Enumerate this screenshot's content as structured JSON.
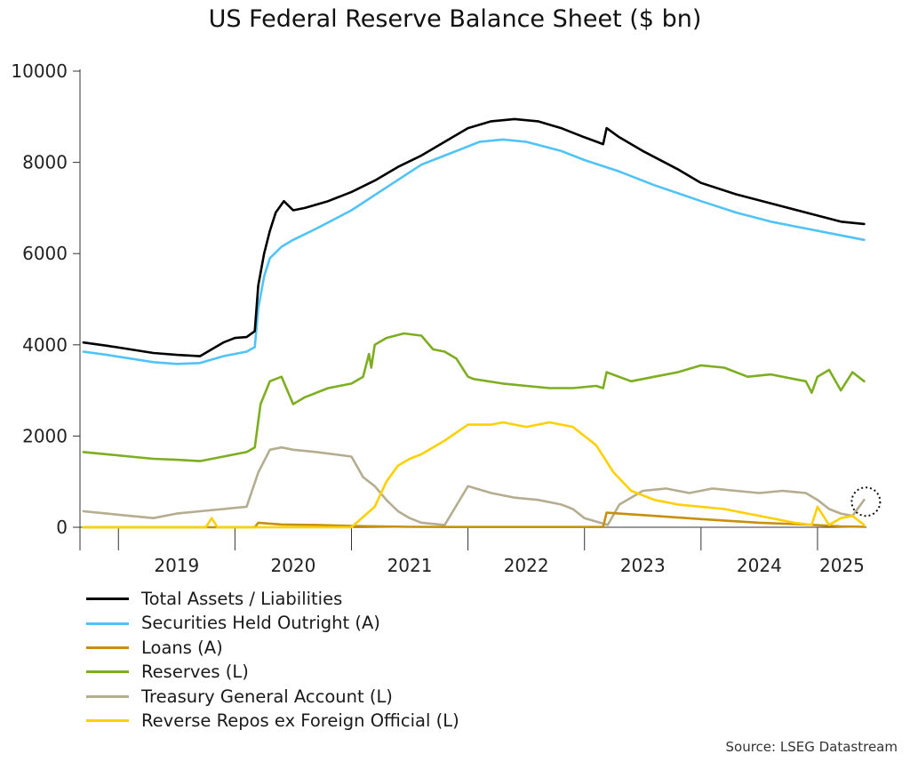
{
  "chart_data": {
    "type": "line",
    "title": "US Federal Reserve Balance Sheet ($ bn)",
    "xlabel": "",
    "ylabel": "",
    "ylim": [
      0,
      10000
    ],
    "yticks": [
      "0",
      "2000",
      "4000",
      "6000",
      "8000",
      "10000"
    ],
    "x_range": [
      "2018-09",
      "2025-06"
    ],
    "x_tick_labels": [
      "2019",
      "2020",
      "2021",
      "2022",
      "2023",
      "2024",
      "2025"
    ],
    "legend_position": "bottom-left",
    "grid": false,
    "annotation": "dotted circle highlighting latest Treasury General Account value",
    "source": "Source: LSEG Datastream",
    "series": [
      {
        "name": "Total Assets / Liabilities",
        "color": "#000000",
        "x": [
          2018.7,
          2018.9,
          2019.1,
          2019.3,
          2019.5,
          2019.7,
          2019.8,
          2019.9,
          2020.0,
          2020.1,
          2020.17,
          2020.2,
          2020.25,
          2020.3,
          2020.35,
          2020.42,
          2020.5,
          2020.6,
          2020.8,
          2021.0,
          2021.2,
          2021.4,
          2021.6,
          2021.8,
          2022.0,
          2022.2,
          2022.4,
          2022.6,
          2022.8,
          2023.0,
          2023.16,
          2023.19,
          2023.3,
          2023.5,
          2023.8,
          2024.0,
          2024.3,
          2024.6,
          2024.9,
          2025.2,
          2025.4
        ],
        "values": [
          4050,
          3980,
          3900,
          3820,
          3780,
          3750,
          3900,
          4050,
          4150,
          4170,
          4300,
          5300,
          6000,
          6500,
          6900,
          7150,
          6950,
          7000,
          7150,
          7350,
          7600,
          7900,
          8150,
          8450,
          8750,
          8900,
          8950,
          8900,
          8750,
          8550,
          8400,
          8750,
          8550,
          8250,
          7850,
          7550,
          7300,
          7100,
          6900,
          6700,
          6650
        ]
      },
      {
        "name": "Securities Held Outright (A)",
        "color": "#4fc3f7",
        "x": [
          2018.7,
          2018.9,
          2019.1,
          2019.3,
          2019.5,
          2019.7,
          2019.9,
          2020.1,
          2020.17,
          2020.2,
          2020.25,
          2020.3,
          2020.4,
          2020.5,
          2020.7,
          2021.0,
          2021.3,
          2021.6,
          2021.9,
          2022.1,
          2022.3,
          2022.5,
          2022.8,
          2023.0,
          2023.3,
          2023.6,
          2024.0,
          2024.3,
          2024.6,
          2024.9,
          2025.2,
          2025.4
        ],
        "values": [
          3850,
          3780,
          3700,
          3620,
          3580,
          3600,
          3750,
          3850,
          3950,
          4800,
          5500,
          5900,
          6150,
          6300,
          6550,
          6950,
          7450,
          7950,
          8250,
          8450,
          8500,
          8450,
          8250,
          8050,
          7800,
          7500,
          7150,
          6900,
          6700,
          6550,
          6400,
          6300
        ]
      },
      {
        "name": "Loans (A)",
        "color": "#c8900a",
        "x": [
          2018.7,
          2019.0,
          2019.5,
          2020.17,
          2020.2,
          2020.4,
          2020.7,
          2021.0,
          2021.5,
          2022.0,
          2022.5,
          2023.0,
          2023.16,
          2023.19,
          2023.3,
          2023.6,
          2024.0,
          2024.5,
          2024.9,
          2025.2,
          2025.4
        ],
        "values": [
          0,
          0,
          0,
          0,
          100,
          60,
          50,
          30,
          10,
          5,
          5,
          5,
          5,
          320,
          300,
          250,
          180,
          100,
          60,
          20,
          10
        ]
      },
      {
        "name": "Reserves (L)",
        "color": "#7cae1f",
        "x": [
          2018.7,
          2018.9,
          2019.1,
          2019.3,
          2019.5,
          2019.7,
          2019.9,
          2020.1,
          2020.17,
          2020.22,
          2020.3,
          2020.4,
          2020.5,
          2020.6,
          2020.8,
          2021.0,
          2021.1,
          2021.15,
          2021.17,
          2021.2,
          2021.3,
          2021.45,
          2021.6,
          2021.7,
          2021.8,
          2021.9,
          2022.0,
          2022.05,
          2022.3,
          2022.5,
          2022.7,
          2022.9,
          2023.1,
          2023.16,
          2023.19,
          2023.4,
          2023.6,
          2023.8,
          2024.0,
          2024.2,
          2024.4,
          2024.6,
          2024.8,
          2024.9,
          2024.95,
          2025.0,
          2025.1,
          2025.2,
          2025.3,
          2025.4
        ],
        "values": [
          1650,
          1600,
          1550,
          1500,
          1480,
          1450,
          1550,
          1650,
          1750,
          2700,
          3200,
          3300,
          2700,
          2850,
          3050,
          3150,
          3300,
          3800,
          3500,
          4000,
          4150,
          4250,
          4200,
          3900,
          3850,
          3700,
          3300,
          3250,
          3150,
          3100,
          3050,
          3050,
          3100,
          3050,
          3400,
          3200,
          3300,
          3400,
          3550,
          3500,
          3300,
          3350,
          3250,
          3200,
          2950,
          3300,
          3450,
          3000,
          3400,
          3200
        ]
      },
      {
        "name": "Treasury General Account (L)",
        "color": "#b5ad90",
        "x": [
          2018.7,
          2018.9,
          2019.1,
          2019.3,
          2019.5,
          2019.7,
          2019.9,
          2020.1,
          2020.2,
          2020.3,
          2020.4,
          2020.5,
          2020.7,
          2021.0,
          2021.1,
          2021.2,
          2021.3,
          2021.4,
          2021.5,
          2021.6,
          2021.8,
          2022.0,
          2022.2,
          2022.4,
          2022.6,
          2022.8,
          2022.9,
          2023.0,
          2023.2,
          2023.3,
          2023.4,
          2023.5,
          2023.7,
          2023.9,
          2024.1,
          2024.3,
          2024.5,
          2024.7,
          2024.9,
          2025.0,
          2025.1,
          2025.2,
          2025.3,
          2025.4
        ],
        "values": [
          350,
          300,
          250,
          200,
          300,
          350,
          400,
          450,
          1200,
          1700,
          1750,
          1700,
          1650,
          1550,
          1100,
          900,
          600,
          350,
          200,
          100,
          50,
          900,
          750,
          650,
          600,
          500,
          400,
          200,
          50,
          500,
          650,
          800,
          850,
          750,
          850,
          800,
          750,
          800,
          750,
          600,
          400,
          300,
          250,
          600
        ]
      },
      {
        "name": "Reverse Repos ex Foreign Official (L)",
        "color": "#ffd000",
        "x": [
          2018.7,
          2019.0,
          2019.5,
          2019.75,
          2019.8,
          2019.85,
          2020.0,
          2020.5,
          2021.0,
          2021.2,
          2021.3,
          2021.4,
          2021.5,
          2021.6,
          2021.8,
          2022.0,
          2022.2,
          2022.3,
          2022.5,
          2022.7,
          2022.9,
          2023.1,
          2023.25,
          2023.4,
          2023.6,
          2023.8,
          2024.0,
          2024.2,
          2024.4,
          2024.6,
          2024.8,
          2024.95,
          2025.0,
          2025.1,
          2025.2,
          2025.3,
          2025.4
        ],
        "values": [
          0,
          0,
          0,
          0,
          200,
          0,
          0,
          0,
          0,
          450,
          1000,
          1350,
          1500,
          1600,
          1900,
          2250,
          2250,
          2300,
          2200,
          2300,
          2200,
          1800,
          1200,
          800,
          600,
          500,
          450,
          400,
          300,
          200,
          100,
          50,
          450,
          50,
          200,
          250,
          50
        ]
      }
    ]
  }
}
